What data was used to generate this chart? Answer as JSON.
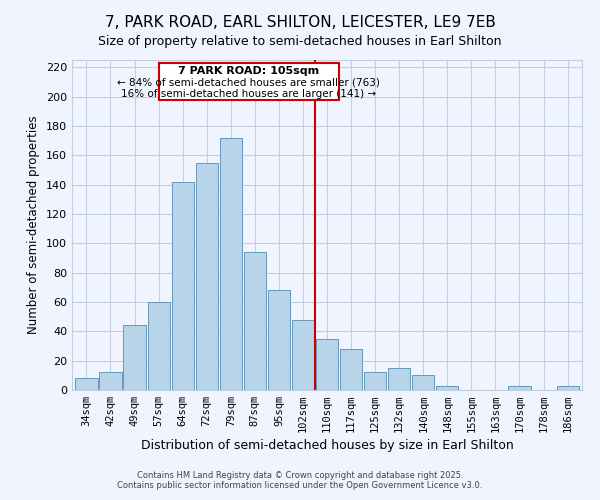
{
  "title": "7, PARK ROAD, EARL SHILTON, LEICESTER, LE9 7EB",
  "subtitle": "Size of property relative to semi-detached houses in Earl Shilton",
  "xlabel": "Distribution of semi-detached houses by size in Earl Shilton",
  "ylabel": "Number of semi-detached properties",
  "bin_labels": [
    "34sqm",
    "42sqm",
    "49sqm",
    "57sqm",
    "64sqm",
    "72sqm",
    "79sqm",
    "87sqm",
    "95sqm",
    "102sqm",
    "110sqm",
    "117sqm",
    "125sqm",
    "132sqm",
    "140sqm",
    "148sqm",
    "155sqm",
    "163sqm",
    "170sqm",
    "178sqm",
    "186sqm"
  ],
  "bar_values": [
    8,
    12,
    44,
    60,
    142,
    155,
    172,
    94,
    68,
    48,
    35,
    28,
    12,
    15,
    10,
    3,
    0,
    0,
    3,
    0,
    3
  ],
  "bar_color": "#b8d4e8",
  "bar_edge_color": "#6699bb",
  "vline_color": "#cc0000",
  "annotation_title": "7 PARK ROAD: 105sqm",
  "annotation_line1": "← 84% of semi-detached houses are smaller (763)",
  "annotation_line2": "16% of semi-detached houses are larger (141) →",
  "annotation_box_edge": "#cc0000",
  "ylim": [
    0,
    225
  ],
  "yticks": [
    0,
    20,
    40,
    60,
    80,
    100,
    120,
    140,
    160,
    180,
    200,
    220
  ],
  "footer1": "Contains HM Land Registry data © Crown copyright and database right 2025.",
  "footer2": "Contains public sector information licensed under the Open Government Licence v3.0.",
  "bg_color": "#f0f4ff",
  "grid_color": "#c0d0e0"
}
